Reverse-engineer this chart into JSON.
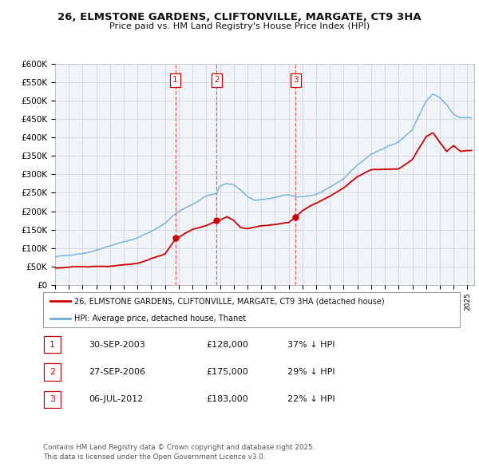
{
  "title_line1": "26, ELMSTONE GARDENS, CLIFTONVILLE, MARGATE, CT9 3HA",
  "title_line2": "Price paid vs. HM Land Registry's House Price Index (HPI)",
  "hpi_color": "#6baed6",
  "price_color": "#cc0000",
  "background_color": "#ffffff",
  "grid_color": "#cccccc",
  "plot_bg": "#f0f4f8",
  "transactions": [
    {
      "num": 1,
      "date": "30-SEP-2003",
      "price": 128000,
      "price_str": "£128,000",
      "pct": "37%",
      "year": 2003.747
    },
    {
      "num": 2,
      "date": "27-SEP-2006",
      "price": 175000,
      "price_str": "£175,000",
      "pct": "29%",
      "year": 2006.747
    },
    {
      "num": 3,
      "date": "06-JUL-2012",
      "price": 183000,
      "price_str": "£183,000",
      "pct": "22%",
      "year": 2012.508
    }
  ],
  "legend_label_price": "26, ELMSTONE GARDENS, CLIFTONVILLE, MARGATE, CT9 3HA (detached house)",
  "legend_label_hpi": "HPI: Average price, detached house, Thanet",
  "footer": "Contains HM Land Registry data © Crown copyright and database right 2025.\nThis data is licensed under the Open Government Licence v3.0.",
  "ylim": [
    0,
    600000
  ],
  "yticks": [
    0,
    50000,
    100000,
    150000,
    200000,
    250000,
    300000,
    350000,
    400000,
    450000,
    500000,
    550000,
    600000
  ],
  "ytick_labels": [
    "£0",
    "£50K",
    "£100K",
    "£150K",
    "£200K",
    "£250K",
    "£300K",
    "£350K",
    "£400K",
    "£450K",
    "£500K",
    "£550K",
    "£600K"
  ],
  "xmin": 1995,
  "xmax": 2025.5,
  "xticks": [
    1995,
    1996,
    1997,
    1998,
    1999,
    2000,
    2001,
    2002,
    2003,
    2004,
    2005,
    2006,
    2007,
    2008,
    2009,
    2010,
    2011,
    2012,
    2013,
    2014,
    2015,
    2016,
    2017,
    2018,
    2019,
    2020,
    2021,
    2022,
    2023,
    2024,
    2025
  ]
}
